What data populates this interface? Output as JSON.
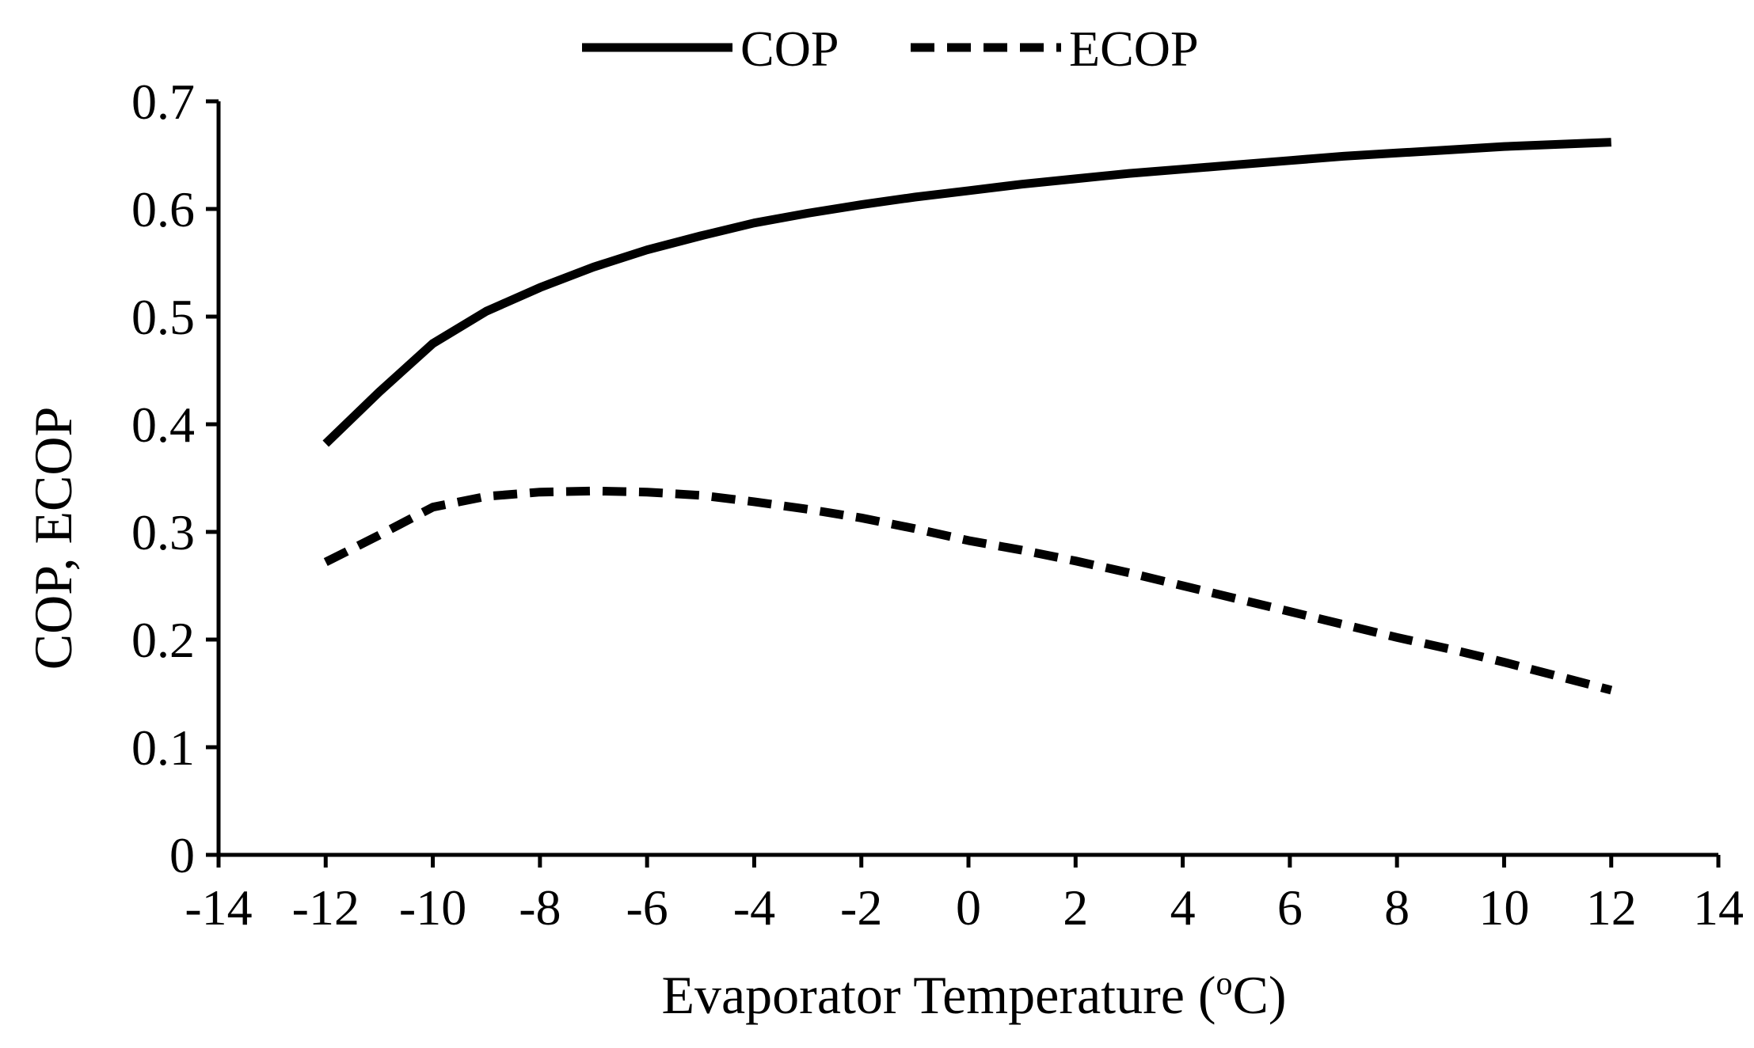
{
  "chart_data": {
    "type": "line",
    "title": "",
    "xlabel": "Evaporator Temperature (",
    "xlabel_sup": "o",
    "xlabel_tail": "C)",
    "ylabel": "COP, ECOP",
    "xlim": [
      -14,
      14
    ],
    "ylim": [
      0,
      0.7
    ],
    "x_ticks": [
      "-14",
      "-12",
      "-10",
      "-8",
      "-6",
      "-4",
      "-2",
      "0",
      "2",
      "4",
      "6",
      "8",
      "10",
      "12",
      "14"
    ],
    "y_ticks": [
      "0",
      "0.1",
      "0.2",
      "0.3",
      "0.4",
      "0.5",
      "0.6",
      "0.7"
    ],
    "grid": false,
    "legend_position": "top-center",
    "series": [
      {
        "name": "COP",
        "style": "solid",
        "color": "#000000",
        "x": [
          -12,
          -11,
          -10,
          -9,
          -8,
          -7,
          -6,
          -5,
          -4,
          -3,
          -2,
          -1,
          0,
          1,
          2,
          3,
          4,
          5,
          6,
          7,
          8,
          9,
          10,
          11,
          12
        ],
        "y": [
          0.382,
          0.43,
          0.475,
          0.505,
          0.527,
          0.546,
          0.562,
          0.575,
          0.587,
          0.596,
          0.604,
          0.611,
          0.617,
          0.623,
          0.628,
          0.633,
          0.637,
          0.641,
          0.645,
          0.649,
          0.652,
          0.655,
          0.658,
          0.66,
          0.662
        ]
      },
      {
        "name": "ECOP",
        "style": "dashed",
        "color": "#000000",
        "x": [
          -12,
          -11,
          -10,
          -9,
          -8,
          -7,
          -6,
          -5,
          -4,
          -3,
          -2,
          -1,
          0,
          1,
          2,
          3,
          4,
          5,
          6,
          7,
          8,
          9,
          10,
          11,
          12
        ],
        "y": [
          0.272,
          0.297,
          0.323,
          0.333,
          0.337,
          0.338,
          0.337,
          0.334,
          0.328,
          0.321,
          0.313,
          0.303,
          0.292,
          0.283,
          0.273,
          0.262,
          0.25,
          0.238,
          0.226,
          0.214,
          0.202,
          0.191,
          0.179,
          0.166,
          0.153
        ]
      }
    ]
  }
}
